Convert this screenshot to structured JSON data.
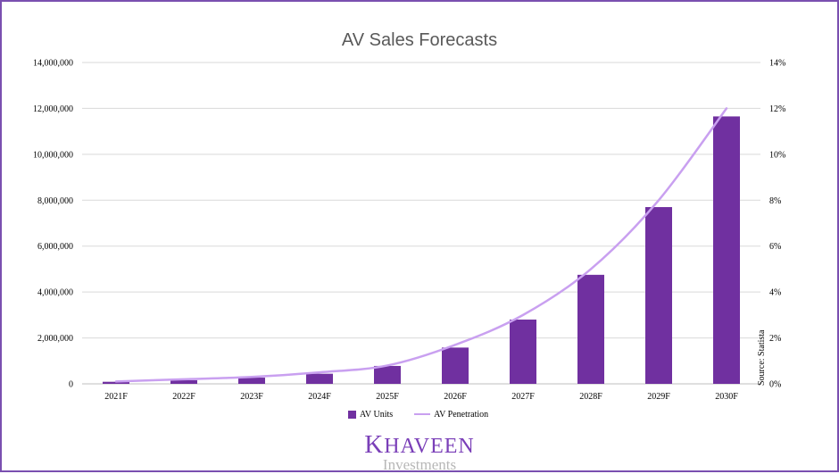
{
  "colors": {
    "bar": "#7030a0",
    "line": "#c9a0f0",
    "frame": "#7a4fb0",
    "grid": "#d9d9d9"
  },
  "chart_data": {
    "type": "bar",
    "title": "AV Sales Forecasts",
    "categories": [
      "2021F",
      "2022F",
      "2023F",
      "2024F",
      "2025F",
      "2026F",
      "2027F",
      "2028F",
      "2029F",
      "2030F"
    ],
    "series": [
      {
        "name": "AV Units",
        "type": "bar",
        "axis": "left",
        "values": [
          90000,
          160000,
          270000,
          440000,
          780000,
          1580000,
          2800000,
          4750000,
          7700000,
          11650000
        ]
      },
      {
        "name": "AV Penetration",
        "type": "line",
        "axis": "right",
        "values": [
          0.1,
          0.2,
          0.3,
          0.5,
          0.8,
          1.7,
          3.0,
          5.0,
          8.0,
          12.0
        ]
      }
    ],
    "y_left": {
      "lim": [
        0,
        14000000
      ],
      "ticks": [
        0,
        2000000,
        4000000,
        6000000,
        8000000,
        10000000,
        12000000,
        14000000
      ],
      "tick_labels": [
        "0",
        "2,000,000",
        "4,000,000",
        "6,000,000",
        "8,000,000",
        "10,000,000",
        "12,000,000",
        "14,000,000"
      ]
    },
    "y_right": {
      "lim": [
        0,
        14
      ],
      "ticks": [
        0,
        2,
        4,
        6,
        8,
        10,
        12,
        14
      ],
      "tick_labels": [
        "0%",
        "2%",
        "4%",
        "6%",
        "8%",
        "10%",
        "12%",
        "14%"
      ]
    },
    "grid": true,
    "legend": "bottom",
    "source_note": "Source: Statista"
  },
  "logo": {
    "brand": "KHAVEEN",
    "sub": "Investments"
  }
}
